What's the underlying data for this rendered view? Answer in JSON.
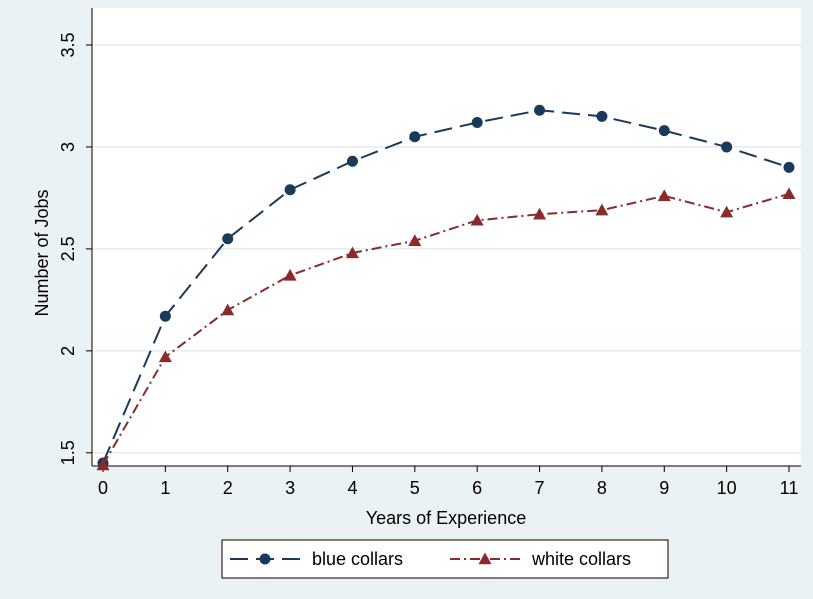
{
  "chart_data": {
    "type": "line",
    "title": "",
    "xlabel": "Years of Experience",
    "ylabel": "Number of Jobs",
    "x": [
      0,
      1,
      2,
      3,
      4,
      5,
      6,
      7,
      8,
      9,
      10,
      11
    ],
    "xlim": [
      0,
      11
    ],
    "ylim": [
      1.45,
      3.5
    ],
    "xticks": [
      "0",
      "1",
      "2",
      "3",
      "4",
      "5",
      "6",
      "7",
      "8",
      "9",
      "10",
      "11"
    ],
    "yticks": [
      {
        "value": 1.5,
        "label": "1.5"
      },
      {
        "value": 2,
        "label": "2"
      },
      {
        "value": 2.5,
        "label": "2.5"
      },
      {
        "value": 3,
        "label": "3"
      },
      {
        "value": 3.5,
        "label": "3.5"
      }
    ],
    "grid": true,
    "legend_position": "bottom",
    "series": [
      {
        "name": "blue collars",
        "color": "#1a3a5c",
        "marker": "circle",
        "line_style": "long-dash",
        "values": [
          1.45,
          2.17,
          2.55,
          2.79,
          2.93,
          3.05,
          3.12,
          3.18,
          3.15,
          3.08,
          3.0,
          2.9
        ]
      },
      {
        "name": "white collars",
        "color": "#8b2a2a",
        "marker": "triangle",
        "line_style": "dash-dot",
        "values": [
          1.44,
          1.97,
          2.2,
          2.37,
          2.48,
          2.54,
          2.64,
          2.67,
          2.69,
          2.76,
          2.68,
          2.77
        ]
      }
    ]
  }
}
